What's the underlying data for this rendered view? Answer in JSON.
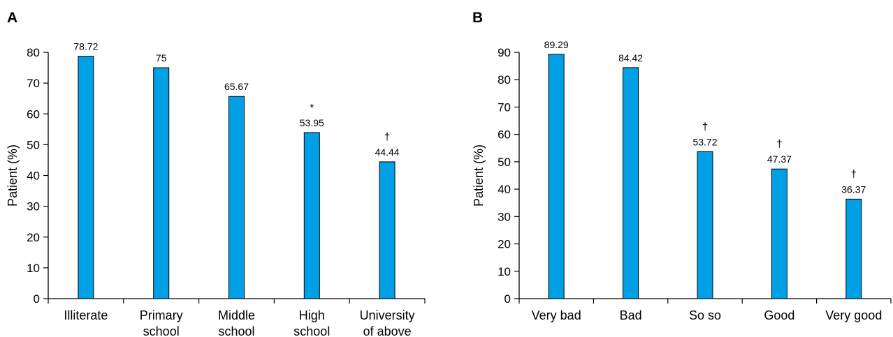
{
  "chart_data": [
    {
      "panel": "A",
      "type": "bar",
      "ylabel": "Patient (%)",
      "ylim": [
        0,
        80
      ],
      "yticks": [
        0,
        10,
        20,
        30,
        40,
        50,
        60,
        70,
        80
      ],
      "categories": [
        [
          "Illiterate"
        ],
        [
          "Primary",
          "school"
        ],
        [
          "Middle",
          "school"
        ],
        [
          "High",
          "school"
        ],
        [
          "University",
          "of above"
        ]
      ],
      "values": [
        78.72,
        75,
        65.67,
        53.95,
        44.44
      ],
      "data_labels": [
        "78.72",
        "75",
        "65.67",
        "53.95",
        "44.44"
      ],
      "markers": [
        "",
        "",
        "",
        "*",
        "†"
      ],
      "bar_color": "#00a0e6",
      "grid": false
    },
    {
      "panel": "B",
      "type": "bar",
      "ylabel": "Patient  (%)",
      "ylim": [
        0,
        90
      ],
      "yticks": [
        0,
        10,
        20,
        30,
        40,
        50,
        60,
        70,
        80,
        90
      ],
      "categories": [
        [
          "Very bad"
        ],
        [
          "Bad"
        ],
        [
          "So so"
        ],
        [
          "Good"
        ],
        [
          "Very good"
        ]
      ],
      "values": [
        89.29,
        84.42,
        53.72,
        47.37,
        36.37
      ],
      "data_labels": [
        "89.29",
        "84.42",
        "53.72",
        "47.37",
        "36.37"
      ],
      "markers": [
        "",
        "",
        "†",
        "†",
        "†"
      ],
      "bar_color": "#00a0e6",
      "grid": false
    }
  ]
}
